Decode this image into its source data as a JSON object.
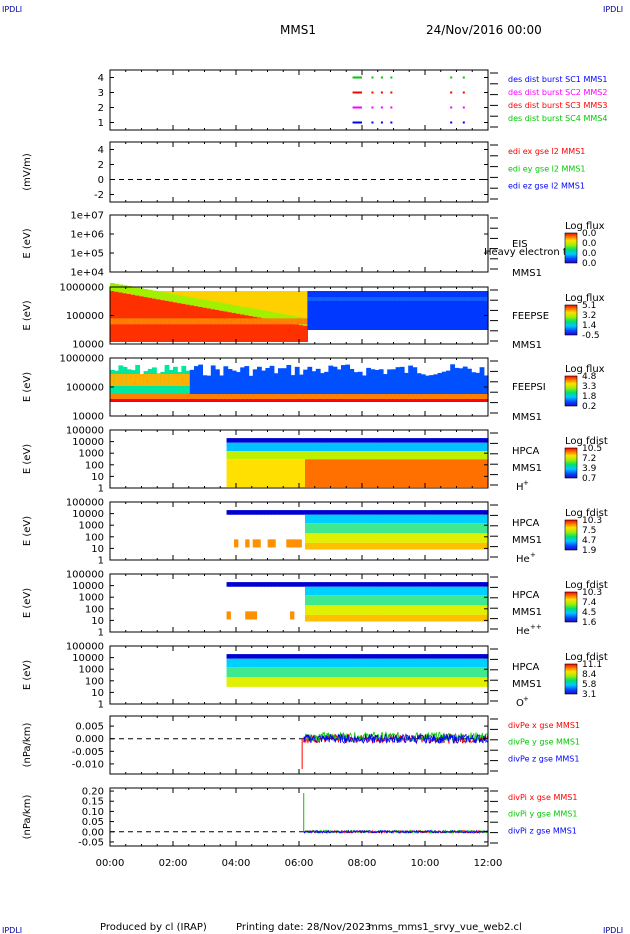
{
  "header": {
    "corner_tl": "IPDLI",
    "corner_tr": "IPDLI",
    "corner_bl": "IPDLI",
    "corner_br": "IPDLI",
    "mission": "MMS1",
    "date": "24/Nov/2016 00:00"
  },
  "footer": {
    "produced_by": "Produced by cl (IRAP)",
    "printing_date": "Printing date: 28/Nov/2023",
    "filename": "mms_mms1_srvy_vue_web2.cl"
  },
  "colors": {
    "red": "#ff0000",
    "green": "#00c800",
    "blue": "#0000ff",
    "magenta": "#ff00ff",
    "darkblue": "#0000a0"
  },
  "chart_data": {
    "type": "heatmap",
    "x_ticks": [
      "00:00",
      "02:00",
      "04:00",
      "06:00",
      "08:00",
      "10:00",
      "12:00"
    ],
    "xlim_hours": [
      0,
      12
    ],
    "panels": [
      {
        "id": "burst",
        "ylabel": "",
        "yticks": [
          "4",
          "3",
          "2",
          "1"
        ],
        "ylim": [
          0.5,
          4.5
        ],
        "legend": [
          {
            "text": "des dist burst SC1 MMS1",
            "color": "#0000ff"
          },
          {
            "text": "des dist burst SC2 MMS2",
            "color": "#ff00ff"
          },
          {
            "text": "des dist burst SC3 MMS3",
            "color": "#ff0000"
          },
          {
            "text": "des dist burst SC4 MMS4",
            "color": "#00c800"
          }
        ]
      },
      {
        "id": "edi",
        "ylabel": "(mV/m)",
        "yticks": [
          "4",
          "2",
          "0",
          "-2"
        ],
        "ylim": [
          -3,
          5
        ],
        "legend": [
          {
            "text": "edi ex gse l2 MMS1",
            "color": "#ff0000"
          },
          {
            "text": "edi ey gse l2 MMS1",
            "color": "#00c800"
          },
          {
            "text": "edi ez gse l2 MMS1",
            "color": "#0000ff"
          }
        ]
      },
      {
        "id": "eis",
        "ylabel": "E (eV)",
        "yticks": [
          "1e+07",
          "1e+06",
          "1e+05",
          "1e+04"
        ],
        "log": true,
        "ylim": [
          10000,
          10000000
        ],
        "instrument": [
          "EIS",
          "MMS1"
        ],
        "overlay_text": "Heavy electron to",
        "colorbar_title": "Log flux",
        "colorbar_ticks": [
          "0.0",
          "0.0",
          "0.0",
          "0.0"
        ]
      },
      {
        "id": "feepse",
        "ylabel": "E (eV)",
        "yticks": [
          "1000000",
          "100000",
          "10000"
        ],
        "log": true,
        "ylim": [
          10000,
          1000000
        ],
        "instrument": [
          "FEEPSE",
          "MMS1"
        ],
        "colorbar_title": "Log flux",
        "colorbar_ticks": [
          "5.1",
          "3.2",
          "1.4",
          "-0.5"
        ]
      },
      {
        "id": "feepsi",
        "ylabel": "E (eV)",
        "yticks": [
          "1000000",
          "100000",
          "10000"
        ],
        "log": true,
        "ylim": [
          10000,
          1000000
        ],
        "instrument": [
          "FEEPSI",
          "MMS1"
        ],
        "colorbar_title": "Log flux",
        "colorbar_ticks": [
          "4.8",
          "3.3",
          "1.8",
          "0.2"
        ]
      },
      {
        "id": "hpca_h",
        "ylabel": "E (eV)",
        "yticks": [
          "100000",
          "10000",
          "1000",
          "100",
          "10",
          "1"
        ],
        "log": true,
        "ylim": [
          1,
          100000
        ],
        "instrument": [
          "HPCA",
          "MMS1"
        ],
        "species": "H",
        "charge": "+",
        "colorbar_title": "Log fdist",
        "colorbar_ticks": [
          "10.5",
          "7.2",
          "3.9",
          "0.7"
        ]
      },
      {
        "id": "hpca_he",
        "ylabel": "E (eV)",
        "yticks": [
          "100000",
          "10000",
          "1000",
          "100",
          "10",
          "1"
        ],
        "log": true,
        "ylim": [
          1,
          100000
        ],
        "instrument": [
          "HPCA",
          "MMS1"
        ],
        "species": "He",
        "charge": "+",
        "colorbar_title": "Log fdist",
        "colorbar_ticks": [
          "10.3",
          "7.5",
          "4.7",
          "1.9"
        ]
      },
      {
        "id": "hpca_hepp",
        "ylabel": "E (eV)",
        "yticks": [
          "100000",
          "10000",
          "1000",
          "100",
          "10",
          "1"
        ],
        "log": true,
        "ylim": [
          1,
          100000
        ],
        "instrument": [
          "HPCA",
          "MMS1"
        ],
        "species": "He",
        "charge": "++",
        "colorbar_title": "Log fdist",
        "colorbar_ticks": [
          "10.3",
          "7.4",
          "4.5",
          "1.6"
        ]
      },
      {
        "id": "hpca_o",
        "ylabel": "E (eV)",
        "yticks": [
          "100000",
          "10000",
          "1000",
          "100",
          "10",
          "1"
        ],
        "log": true,
        "ylim": [
          1,
          100000
        ],
        "instrument": [
          "HPCA",
          "MMS1"
        ],
        "species": "O",
        "charge": "+",
        "colorbar_title": "Log fdist",
        "colorbar_ticks": [
          "11.1",
          "8.4",
          "5.8",
          "3.1"
        ]
      },
      {
        "id": "divpe",
        "ylabel": "(nPa/km)",
        "yticks": [
          "0.005",
          "0.000",
          "-0.005",
          "-0.010"
        ],
        "ylim": [
          -0.014,
          0.009
        ],
        "legend": [
          {
            "text": "divPe x gse MMS1",
            "color": "#ff0000"
          },
          {
            "text": "divPe y gse MMS1",
            "color": "#00c800"
          },
          {
            "text": "divPe z gse MMS1",
            "color": "#0000ff"
          }
        ]
      },
      {
        "id": "divpi",
        "ylabel": "(nPa/km)",
        "yticks": [
          "0.20",
          "0.15",
          "0.10",
          "0.05",
          "0.00",
          "-0.05"
        ],
        "ylim": [
          -0.07,
          0.215
        ],
        "legend": [
          {
            "text": "divPi x gse MMS1",
            "color": "#ff0000"
          },
          {
            "text": "divPi y gse MMS1",
            "color": "#00c800"
          },
          {
            "text": "divPi z gse MMS1",
            "color": "#0000ff"
          }
        ]
      }
    ]
  }
}
